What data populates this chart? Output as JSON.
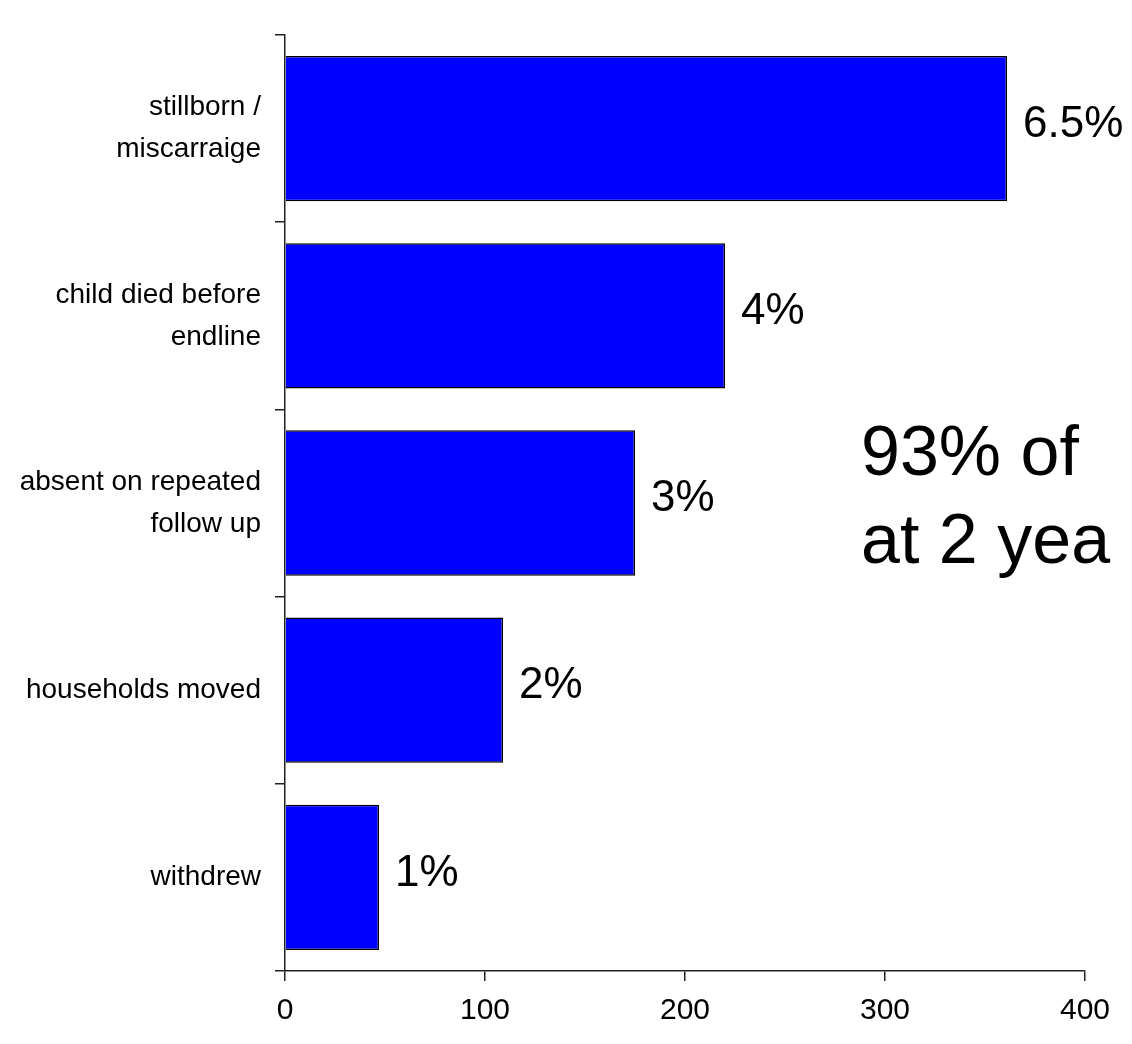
{
  "chart_data": {
    "type": "bar",
    "orientation": "horizontal",
    "categories": [
      "stillborn / miscarraige",
      "child died before endline",
      "absent on repeated follow up",
      "households moved",
      "withdrew"
    ],
    "values": [
      361,
      220,
      175,
      109,
      47
    ],
    "color": "#0000ff",
    "xlim": [
      0,
      400
    ],
    "xticks": [
      0,
      100,
      200,
      300,
      400
    ],
    "annotations": [
      {
        "text": "6.5%",
        "x": 361,
        "y": "stillborn / miscarraige"
      },
      {
        "text": "4%",
        "x": 220,
        "y": "child died before endline"
      },
      {
        "text": "3%",
        "x": 175,
        "y": "absent on repeated follow up"
      },
      {
        "text": "2%",
        "x": 109,
        "y": "households moved"
      },
      {
        "text": "1%",
        "x": 47,
        "y": "withdrew"
      },
      "93% of",
      "at 2 yea"
    ]
  }
}
